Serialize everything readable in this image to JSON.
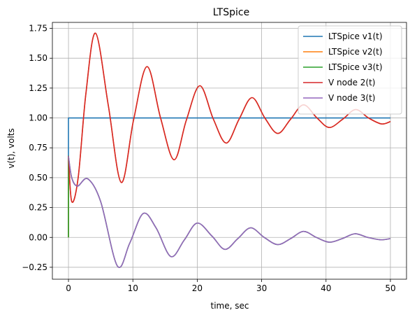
{
  "chart_data": {
    "type": "line",
    "title": "LTSpice",
    "xlabel": "time, sec",
    "ylabel": "v(t), volts",
    "xlim": [
      -2.5,
      52.5
    ],
    "ylim": [
      -0.35,
      1.8
    ],
    "xticks": [
      0,
      10,
      20,
      30,
      40,
      50
    ],
    "xtick_labels": [
      "0",
      "10",
      "20",
      "30",
      "40",
      "50"
    ],
    "yticks": [
      -0.25,
      0.0,
      0.25,
      0.5,
      0.75,
      1.0,
      1.25,
      1.5,
      1.75
    ],
    "ytick_labels": [
      "−0.25",
      "0.00",
      "0.25",
      "0.50",
      "0.75",
      "1.00",
      "1.25",
      "1.50",
      "1.75"
    ],
    "grid": true,
    "legend_position": "top-right",
    "series": [
      {
        "name": "LTSpice v1(t)",
        "color": "#1f77b4",
        "x": [
          0,
          0,
          50
        ],
        "y": [
          0,
          1.0,
          1.0
        ]
      },
      {
        "name": "LTSpice v2(t)",
        "color": "#ff7f0e",
        "x": [
          0,
          0,
          0.5,
          1.5,
          2.7,
          4.2,
          6.2,
          8.2,
          10.1,
          12.2,
          14.3,
          16.4,
          18.3,
          20.4,
          22.5,
          24.5,
          26.5,
          28.5,
          30.5,
          32.5,
          34.5,
          36.5,
          38.6,
          40.5,
          42.6,
          44.6,
          46.6,
          48.6,
          50
        ],
        "y": [
          0,
          0.68,
          0.3,
          0.5,
          1.2,
          1.71,
          1.1,
          0.46,
          0.98,
          1.43,
          1.0,
          0.65,
          0.98,
          1.27,
          0.99,
          0.79,
          0.99,
          1.17,
          1.0,
          0.87,
          0.99,
          1.11,
          1.0,
          0.92,
          0.99,
          1.07,
          1.0,
          0.95,
          0.97
        ]
      },
      {
        "name": "LTSpice v3(t)",
        "color": "#2ca02c",
        "x": [
          0,
          0,
          0.5,
          1.4,
          3.0,
          5.0,
          7.6,
          9.5,
          11.6,
          13.6,
          15.9,
          18.0,
          20.0,
          22.3,
          24.3,
          26.3,
          28.3,
          30.4,
          32.5,
          34.5,
          36.5,
          38.5,
          40.5,
          42.5,
          44.5,
          46.5,
          48.5,
          50
        ],
        "y": [
          0,
          0.68,
          0.5,
          0.43,
          0.49,
          0.3,
          -0.24,
          -0.05,
          0.2,
          0.08,
          -0.16,
          -0.02,
          0.12,
          0.01,
          -0.1,
          -0.01,
          0.08,
          0.0,
          -0.06,
          -0.01,
          0.05,
          0.0,
          -0.04,
          -0.01,
          0.03,
          0.0,
          -0.02,
          -0.01
        ]
      },
      {
        "name": "V node 2(t)",
        "color": "#d62728",
        "x": [
          0,
          0.5,
          1.5,
          2.7,
          4.2,
          6.2,
          8.2,
          10.1,
          12.2,
          14.3,
          16.4,
          18.3,
          20.4,
          22.5,
          24.5,
          26.5,
          28.5,
          30.5,
          32.5,
          34.5,
          36.5,
          38.6,
          40.5,
          42.6,
          44.6,
          46.6,
          48.6,
          50
        ],
        "y": [
          0.68,
          0.3,
          0.5,
          1.2,
          1.71,
          1.1,
          0.46,
          0.98,
          1.43,
          1.0,
          0.65,
          0.98,
          1.27,
          0.99,
          0.79,
          0.99,
          1.17,
          1.0,
          0.87,
          0.99,
          1.11,
          1.0,
          0.92,
          0.99,
          1.07,
          1.0,
          0.95,
          0.97
        ]
      },
      {
        "name": "V node 3(t)",
        "color": "#9467bd",
        "x": [
          0,
          0.5,
          1.4,
          3.0,
          5.0,
          7.6,
          9.5,
          11.6,
          13.6,
          15.9,
          18.0,
          20.0,
          22.3,
          24.3,
          26.3,
          28.3,
          30.4,
          32.5,
          34.5,
          36.5,
          38.5,
          40.5,
          42.5,
          44.5,
          46.5,
          48.5,
          50
        ],
        "y": [
          0.68,
          0.5,
          0.43,
          0.49,
          0.3,
          -0.24,
          -0.05,
          0.2,
          0.08,
          -0.16,
          -0.02,
          0.12,
          0.01,
          -0.1,
          -0.01,
          0.08,
          0.0,
          -0.06,
          -0.01,
          0.05,
          0.0,
          -0.04,
          -0.01,
          0.03,
          0.0,
          -0.02,
          -0.01
        ]
      }
    ]
  }
}
